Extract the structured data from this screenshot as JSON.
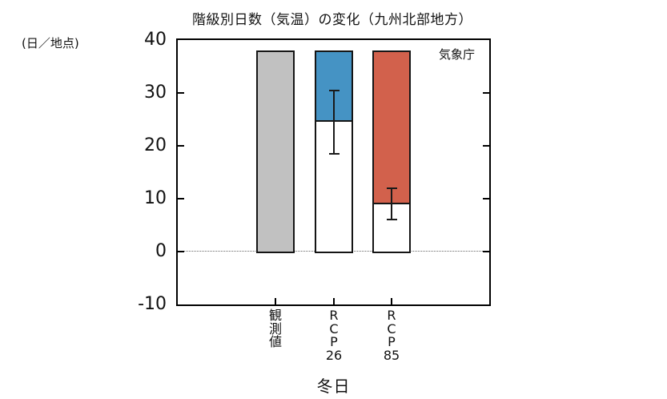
{
  "chart_data": {
    "type": "bar",
    "title": "階級別日数（気温）の変化（九州北部地方）",
    "ylabel": "(日／地点)",
    "xlabel": "冬日",
    "annotation": "気象庁",
    "ylim": [
      -10,
      40
    ],
    "yticks": [
      40,
      30,
      20,
      10,
      0,
      -10
    ],
    "zero_line_dotted": true,
    "legend": false,
    "categories": [
      "観測値",
      "RCP2.6",
      "RCP8.5"
    ],
    "colors": {
      "observed_fill": "#c1c1c1",
      "rcp26_fill": "#4593c4",
      "rcp85_fill": "#d2614c",
      "frame": "#000000",
      "error_bar": "#1a1a1a"
    },
    "bars": [
      {
        "category": "観測値",
        "label_lines": [
          "観",
          "測",
          "値"
        ],
        "role": "observed",
        "bar_top": 38,
        "fill": "#c1c1c1"
      },
      {
        "category": "RCP2.6",
        "label_lines": [
          "R",
          "C",
          "P",
          "26"
        ],
        "role": "projection",
        "bar_top": 38,
        "projected_value": 24.5,
        "error_low": 18.5,
        "error_high": 30.5,
        "fill": "#4593c4"
      },
      {
        "category": "RCP8.5",
        "label_lines": [
          "R",
          "C",
          "P",
          "85"
        ],
        "role": "projection",
        "bar_top": 38,
        "projected_value": 9,
        "error_low": 6,
        "error_high": 12,
        "fill": "#d2614c"
      }
    ]
  }
}
